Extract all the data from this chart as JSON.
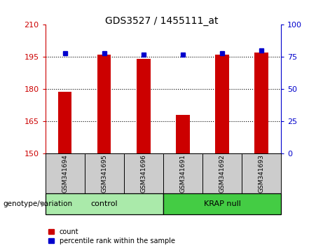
{
  "title": "GDS3527 / 1455111_at",
  "samples": [
    "GSM341694",
    "GSM341695",
    "GSM341696",
    "GSM341691",
    "GSM341692",
    "GSM341693"
  ],
  "bar_values": [
    179,
    196,
    194,
    168,
    196,
    197
  ],
  "percentile_values": [
    78,
    78,
    77,
    77,
    78,
    80
  ],
  "bar_color": "#cc0000",
  "percentile_color": "#0000cc",
  "ylim_left": [
    150,
    210
  ],
  "ylim_right": [
    0,
    100
  ],
  "yticks_left": [
    150,
    165,
    180,
    195,
    210
  ],
  "yticks_right": [
    0,
    25,
    50,
    75,
    100
  ],
  "gridlines": [
    165,
    180,
    195
  ],
  "groups": [
    {
      "label": "control",
      "indices": [
        0,
        1,
        2
      ],
      "color": "#aaeaaa"
    },
    {
      "label": "KRAP null",
      "indices": [
        3,
        4,
        5
      ],
      "color": "#44cc44"
    }
  ],
  "group_label_prefix": "genotype/variation",
  "legend_count_label": "count",
  "legend_percentile_label": "percentile rank within the sample",
  "bar_width": 0.35,
  "sample_box_color": "#cccccc",
  "fig_width": 4.61,
  "fig_height": 3.54
}
